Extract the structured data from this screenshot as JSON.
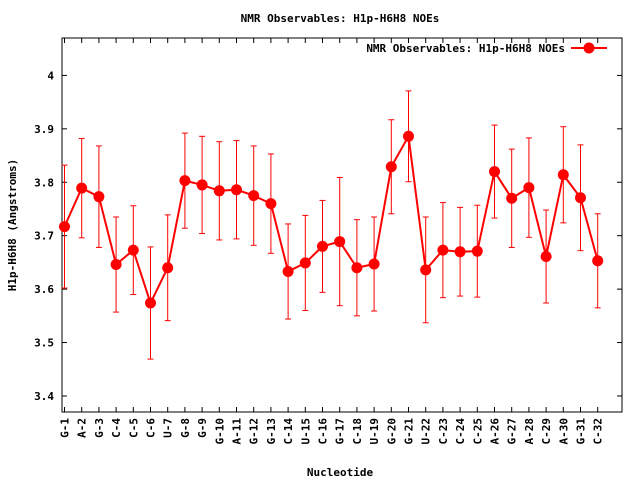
{
  "chart_data": {
    "type": "line",
    "title": "NMR Observables: H1p-H6H8 NOEs",
    "xlabel": "Nucleotide",
    "ylabel": "H1p-H6H8 (Angstroms)",
    "ylim": [
      3.37,
      4.07
    ],
    "yticks": [
      3.4,
      3.5,
      3.6,
      3.7,
      3.8,
      3.9,
      4
    ],
    "grid": false,
    "legend_position": "top-right",
    "colors": {
      "series": "#ff0000",
      "axes": "#000000"
    },
    "series": [
      {
        "name": "NMR Observables: H1p-H6H8 NOEs",
        "points": [
          {
            "x": 1,
            "label": "G-1",
            "y": 3.717,
            "err": 0.115
          },
          {
            "x": 2,
            "label": "A-2",
            "y": 3.789,
            "err": 0.093
          },
          {
            "x": 3,
            "label": "G-3",
            "y": 3.773,
            "err": 0.095
          },
          {
            "x": 4,
            "label": "C-4",
            "y": 3.646,
            "err": 0.089
          },
          {
            "x": 5,
            "label": "C-5",
            "y": 3.673,
            "err": 0.083
          },
          {
            "x": 6,
            "label": "C-6",
            "y": 3.574,
            "err": 0.105
          },
          {
            "x": 7,
            "label": "U-7",
            "y": 3.64,
            "err": 0.099
          },
          {
            "x": 8,
            "label": "G-8",
            "y": 3.803,
            "err": 0.089
          },
          {
            "x": 9,
            "label": "G-9",
            "y": 3.795,
            "err": 0.091
          },
          {
            "x": 10,
            "label": "G-10",
            "y": 3.784,
            "err": 0.092
          },
          {
            "x": 11,
            "label": "A-11",
            "y": 3.786,
            "err": 0.092
          },
          {
            "x": 12,
            "label": "G-12",
            "y": 3.775,
            "err": 0.093
          },
          {
            "x": 13,
            "label": "G-13",
            "y": 3.76,
            "err": 0.093
          },
          {
            "x": 14,
            "label": "C-14",
            "y": 3.633,
            "err": 0.089
          },
          {
            "x": 15,
            "label": "U-15",
            "y": 3.649,
            "err": 0.089
          },
          {
            "x": 16,
            "label": "C-16",
            "y": 3.68,
            "err": 0.086
          },
          {
            "x": 17,
            "label": "G-17",
            "y": 3.689,
            "err": 0.12
          },
          {
            "x": 18,
            "label": "C-18",
            "y": 3.64,
            "err": 0.09
          },
          {
            "x": 19,
            "label": "U-19",
            "y": 3.647,
            "err": 0.088
          },
          {
            "x": 20,
            "label": "G-20",
            "y": 3.829,
            "err": 0.088
          },
          {
            "x": 21,
            "label": "G-21",
            "y": 3.886,
            "err": 0.085
          },
          {
            "x": 22,
            "label": "U-22",
            "y": 3.636,
            "err": 0.099
          },
          {
            "x": 23,
            "label": "C-23",
            "y": 3.673,
            "err": 0.089
          },
          {
            "x": 24,
            "label": "C-24",
            "y": 3.67,
            "err": 0.083
          },
          {
            "x": 25,
            "label": "C-25",
            "y": 3.671,
            "err": 0.086
          },
          {
            "x": 26,
            "label": "A-26",
            "y": 3.82,
            "err": 0.087
          },
          {
            "x": 27,
            "label": "G-27",
            "y": 3.77,
            "err": 0.092
          },
          {
            "x": 28,
            "label": "A-28",
            "y": 3.79,
            "err": 0.093
          },
          {
            "x": 29,
            "label": "C-29",
            "y": 3.661,
            "err": 0.087
          },
          {
            "x": 30,
            "label": "A-30",
            "y": 3.814,
            "err": 0.09
          },
          {
            "x": 31,
            "label": "G-31",
            "y": 3.771,
            "err": 0.099
          },
          {
            "x": 32,
            "label": "C-32",
            "y": 3.653,
            "err": 0.088
          }
        ]
      }
    ]
  }
}
